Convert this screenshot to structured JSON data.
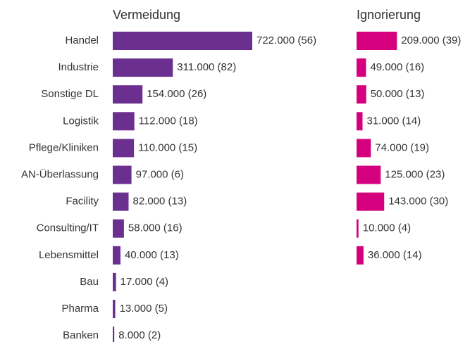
{
  "chart_data": {
    "type": "bar",
    "orientation": "horizontal",
    "categories": [
      "Handel",
      "Industrie",
      "Sonstige DL",
      "Logistik",
      "Pflege/Kliniken",
      "AN-Überlassung",
      "Facility",
      "Consulting/IT",
      "Lebensmittel",
      "Bau",
      "Pharma",
      "Banken"
    ],
    "series": [
      {
        "name": "Vermeidung",
        "color": "#6b2f8f",
        "values": [
          722000,
          311000,
          154000,
          112000,
          110000,
          97000,
          82000,
          58000,
          40000,
          17000,
          13000,
          8000
        ],
        "value_labels": [
          "722.000 (56)",
          "311.000 (82)",
          "154.000 (26)",
          "112.000 (18)",
          "110.000 (15)",
          "97.000 (6)",
          "82.000 (13)",
          "58.000 (16)",
          "40.000 (13)",
          "17.000 (4)",
          "13.000 (5)",
          "8.000 (2)"
        ]
      },
      {
        "name": "Ignorierung",
        "color": "#d4007d",
        "values": [
          209000,
          49000,
          50000,
          31000,
          74000,
          125000,
          143000,
          10000,
          36000,
          null,
          null,
          null
        ],
        "value_labels": [
          "209.000 (39)",
          "49.000 (16)",
          "50.000 (13)",
          "31.000 (14)",
          "74.000 (19)",
          "125.000 (23)",
          "143.000 (30)",
          "10.000 (4)",
          "36.000 (14)",
          null,
          null,
          null
        ]
      }
    ]
  }
}
